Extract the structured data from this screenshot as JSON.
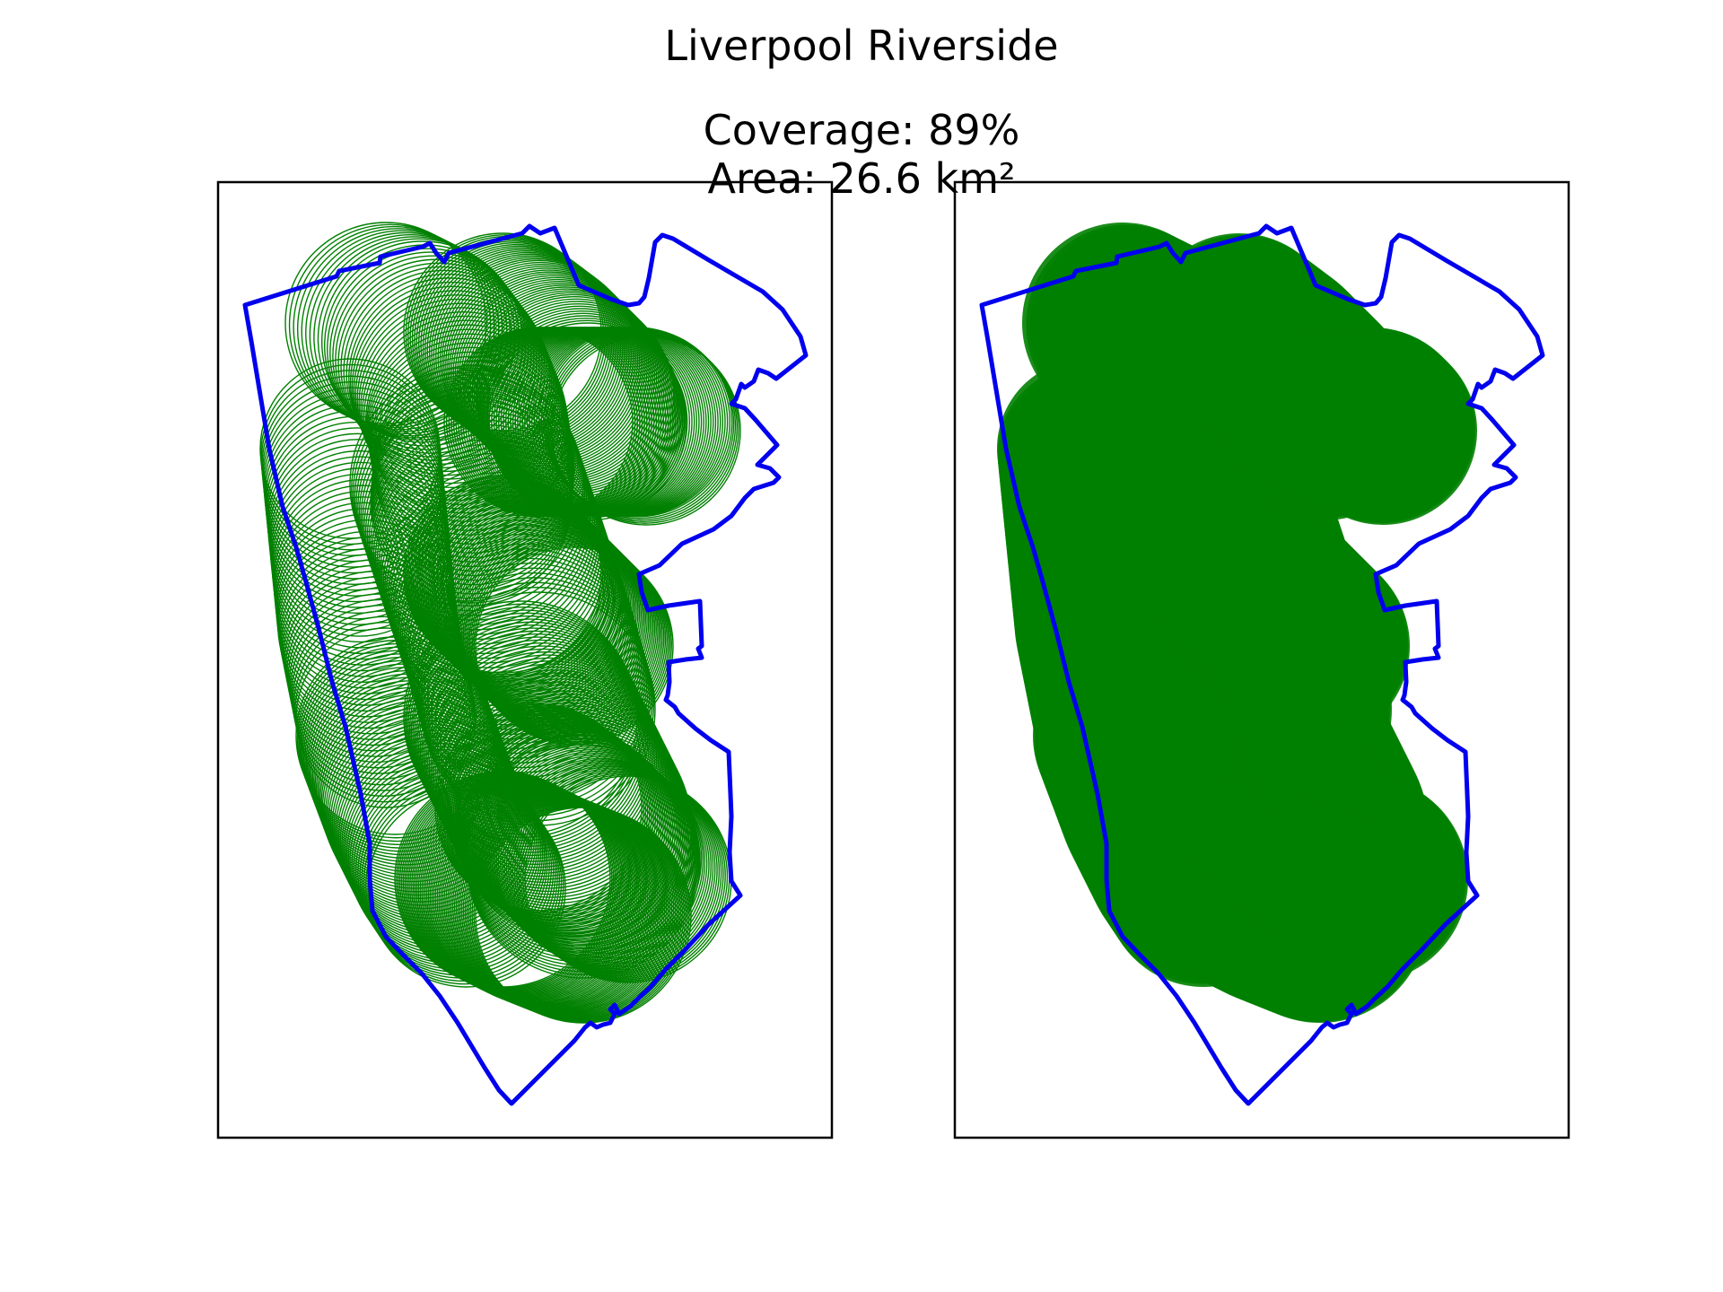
{
  "figure": {
    "title": "Liverpool Riverside",
    "coverage_label": "Coverage: 89%",
    "area_label": "Area: 26.6 km²"
  },
  "colors": {
    "boundary": "#0000ee",
    "coverage": "#008000",
    "frame": "#000000"
  },
  "panels": [
    {
      "name": "circle-outlines",
      "style": "outlined-circles"
    },
    {
      "name": "filled-coverage",
      "style": "filled-circles"
    }
  ],
  "map_data": {
    "coverage_percent": 89,
    "area_km2": 26.6
  }
}
